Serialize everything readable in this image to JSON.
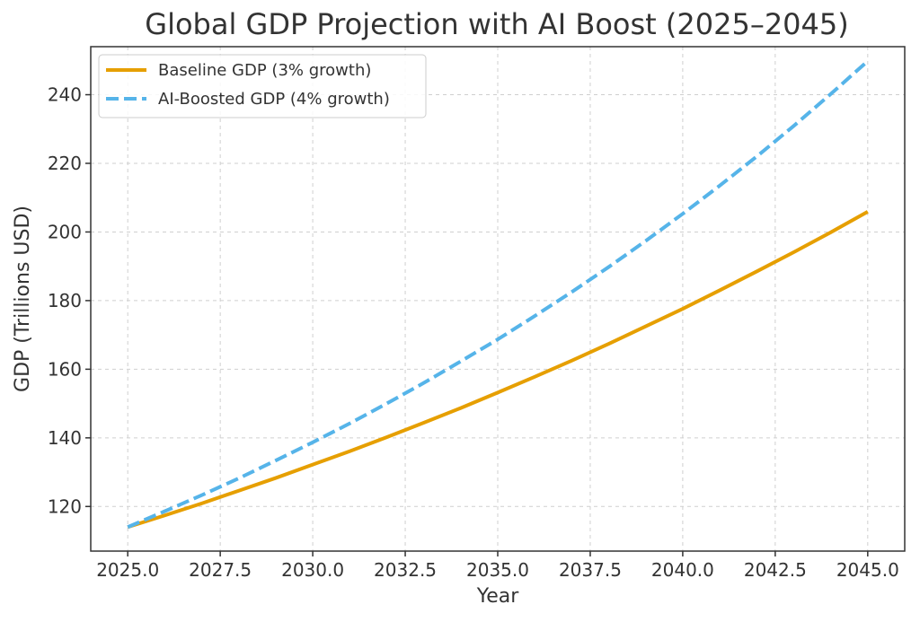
{
  "chart_data": {
    "type": "line",
    "title": "Global GDP Projection with AI Boost (2025–2045)",
    "xlabel": "Year",
    "ylabel": "GDP (Trillions USD)",
    "xlim": [
      2024.0,
      2046.0
    ],
    "ylim": [
      107.0,
      254.0
    ],
    "xticks": [
      2025.0,
      2027.5,
      2030.0,
      2032.5,
      2035.0,
      2037.5,
      2040.0,
      2042.5,
      2045.0
    ],
    "xtick_labels": [
      "2025.0",
      "2027.5",
      "2030.0",
      "2032.5",
      "2035.0",
      "2037.5",
      "2040.0",
      "2042.5",
      "2045.0"
    ],
    "yticks": [
      120,
      140,
      160,
      180,
      200,
      220,
      240
    ],
    "ytick_labels": [
      "120",
      "140",
      "160",
      "180",
      "200",
      "220",
      "240"
    ],
    "grid": true,
    "legend_position": "top-left",
    "x": [
      2025,
      2026,
      2027,
      2028,
      2029,
      2030,
      2031,
      2032,
      2033,
      2034,
      2035,
      2036,
      2037,
      2038,
      2039,
      2040,
      2041,
      2042,
      2043,
      2044,
      2045
    ],
    "series": [
      {
        "name": "Baseline GDP (3% growth)",
        "color": "#E69F00",
        "style": "solid",
        "values": [
          114.0,
          117.4,
          120.9,
          124.6,
          128.3,
          132.2,
          136.1,
          140.2,
          144.4,
          148.7,
          153.2,
          157.8,
          162.5,
          167.4,
          172.5,
          177.6,
          183.0,
          188.5,
          194.1,
          199.9,
          205.9
        ]
      },
      {
        "name": "AI-Boosted GDP (4% growth)",
        "color": "#56B4E9",
        "style": "dashed",
        "values": [
          114.0,
          118.6,
          123.3,
          128.2,
          133.4,
          138.7,
          144.2,
          150.0,
          156.0,
          162.3,
          168.7,
          175.5,
          182.5,
          189.8,
          197.4,
          205.3,
          213.5,
          222.0,
          230.9,
          240.2,
          249.8
        ]
      }
    ]
  }
}
